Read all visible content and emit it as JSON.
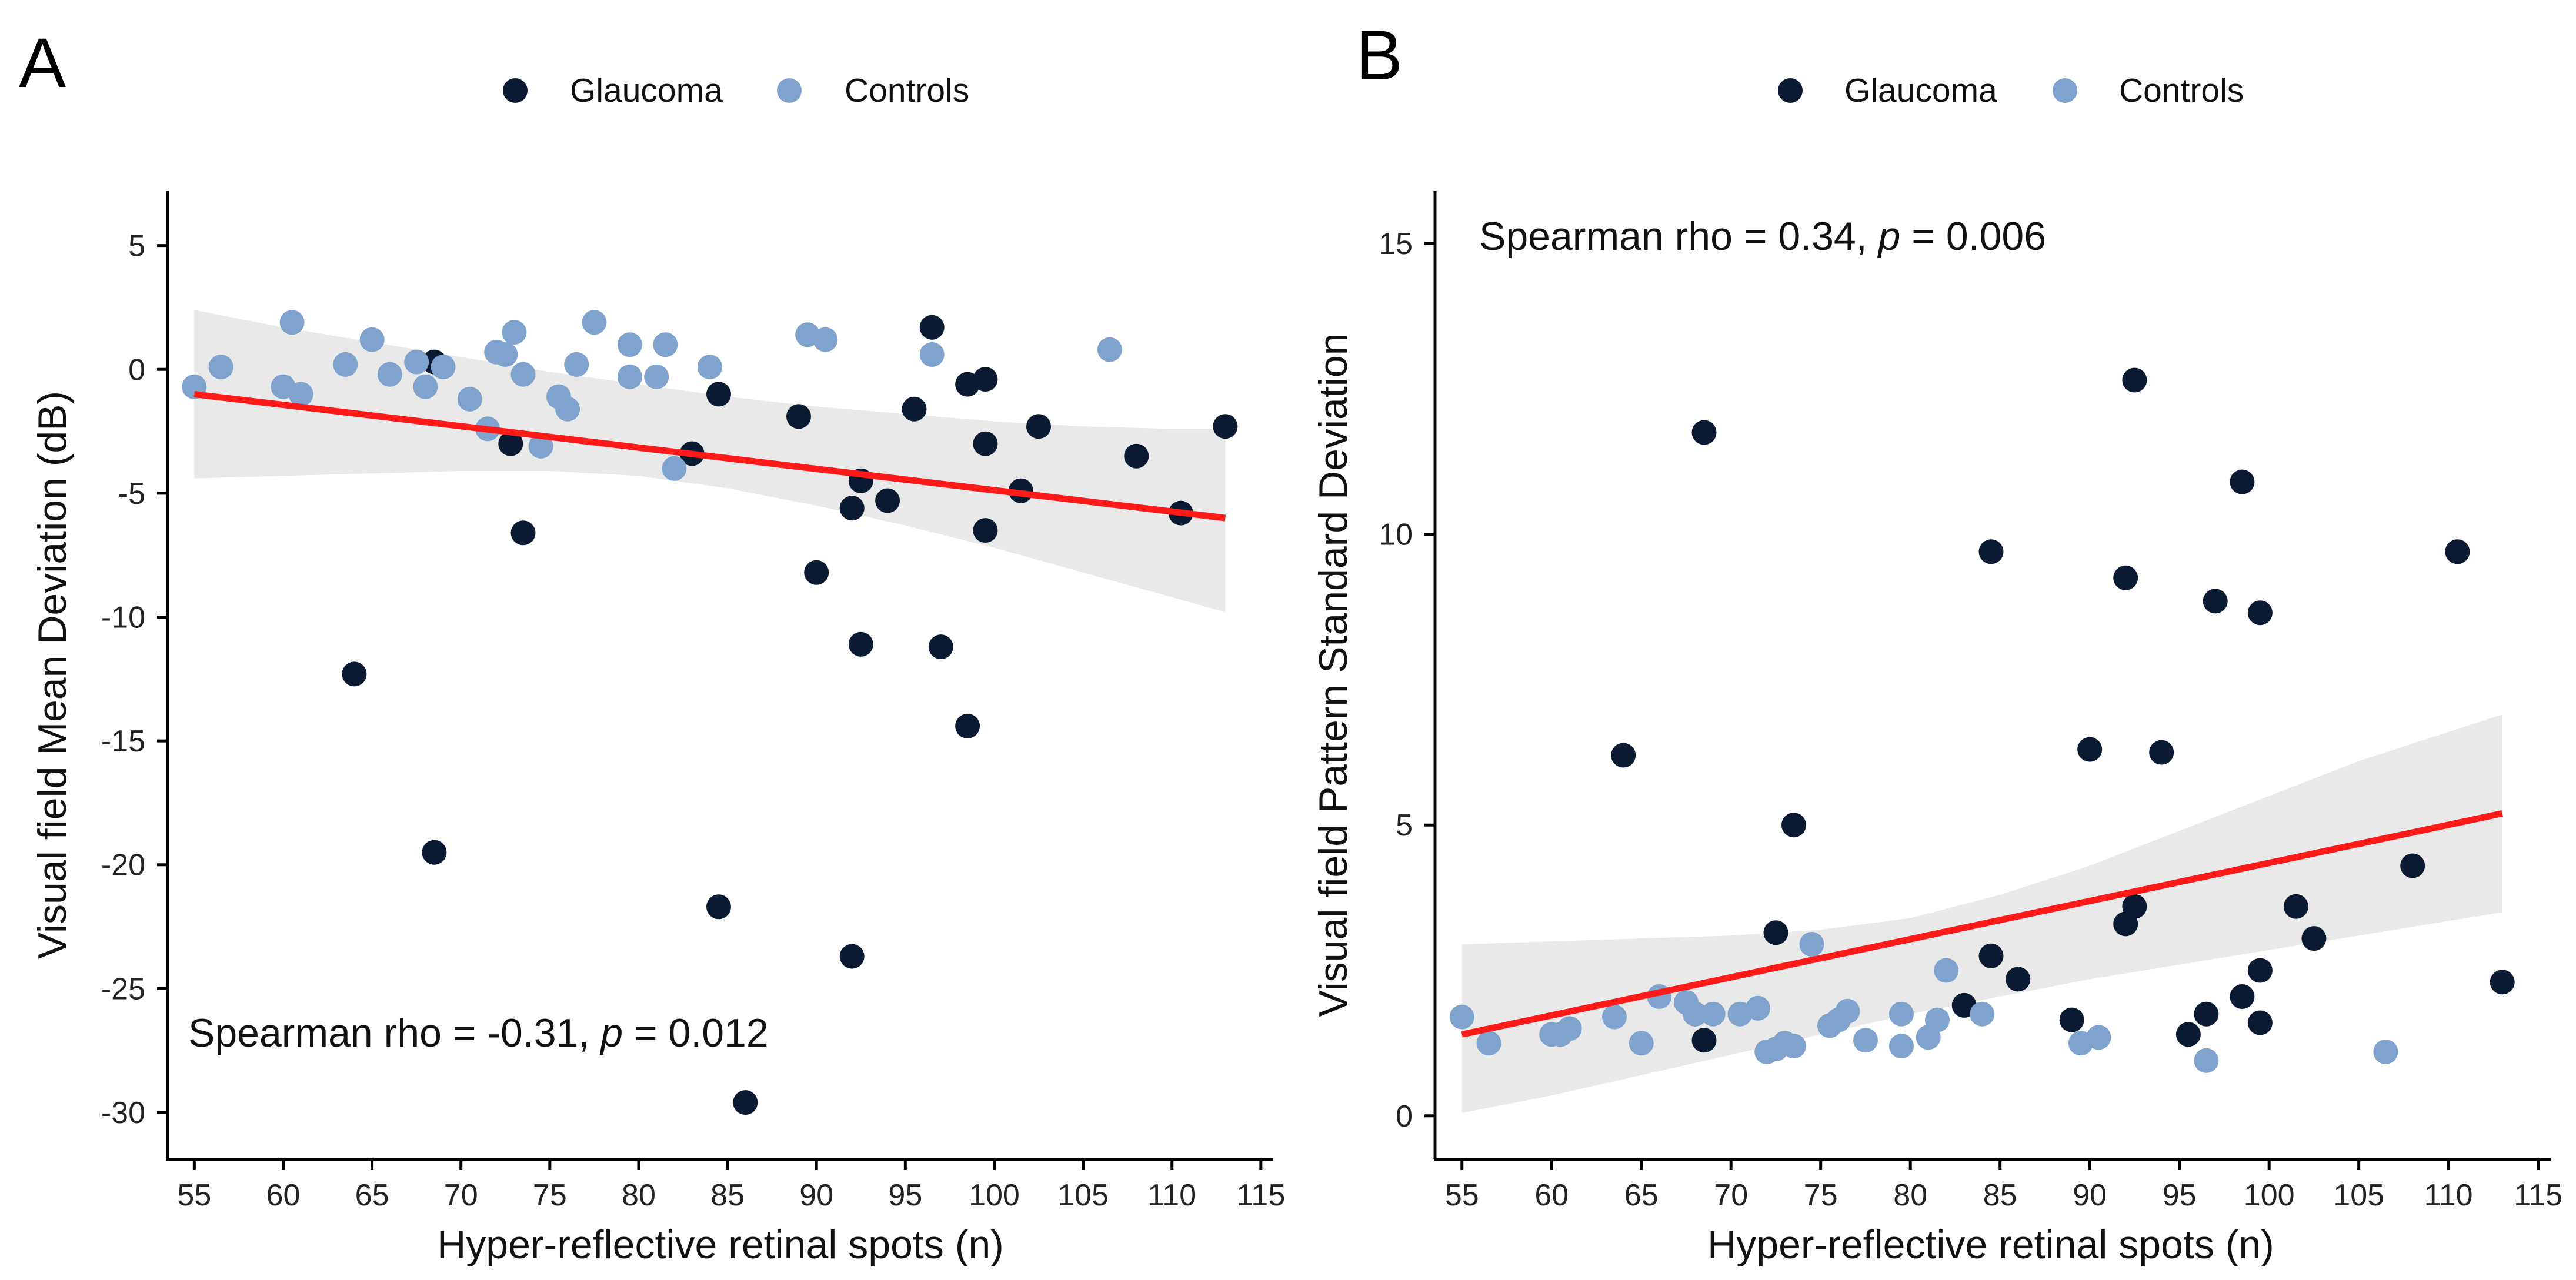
{
  "colors": {
    "glaucoma": "#0b1a33",
    "controls": "#7fa3cc",
    "trend": "#ff1a1a",
    "band": "#e5e5e5"
  },
  "chart_data": [
    {
      "type": "scatter",
      "panel": "A",
      "legend": [
        "Glaucoma",
        "Controls"
      ],
      "legend_position": "top-center",
      "xlabel": "Hyper-reflective retinal spots (n)",
      "ylabel": "Visual field Mean Deviation (dB)",
      "xlim": [
        53.5,
        115.7
      ],
      "ylim": [
        -31.9,
        7.2
      ],
      "xticks": [
        55,
        60,
        65,
        70,
        75,
        80,
        85,
        90,
        95,
        100,
        105,
        110,
        115
      ],
      "yticks": [
        5,
        0,
        -5,
        -10,
        -15,
        -20,
        -25,
        -30
      ],
      "xtick_labels": [
        "55",
        "60",
        "65",
        "70",
        "75",
        "80",
        "85",
        "90",
        "95",
        "100",
        "105",
        "110",
        "115"
      ],
      "ytick_labels": [
        "5",
        "0",
        "-5",
        "-10",
        "-15",
        "-20",
        "-25",
        "-30"
      ],
      "annotation": {
        "prefix": "Spearman rho = -0.31, ",
        "p": "p",
        "suffix": " = 0.012"
      },
      "trend": {
        "x": [
          55,
          113
        ],
        "y": [
          -1.0,
          -6.0
        ]
      },
      "band": {
        "x": [
          55,
          60,
          65,
          70,
          75,
          80,
          85,
          90,
          95,
          100,
          105,
          110,
          113
        ],
        "upper": [
          2.4,
          1.7,
          1.1,
          0.5,
          -0.1,
          -0.6,
          -1.1,
          -1.5,
          -1.8,
          -2.1,
          -2.3,
          -2.4,
          -2.4
        ],
        "lower": [
          -4.4,
          -4.3,
          -4.2,
          -4.1,
          -4.1,
          -4.3,
          -4.8,
          -5.5,
          -6.3,
          -7.2,
          -8.2,
          -9.2,
          -9.8
        ]
      },
      "series": [
        {
          "name": "Glaucoma",
          "x": [
            64.0,
            68.5,
            68.5,
            72.8,
            73.5,
            83,
            84.5,
            84.5,
            86,
            89,
            90,
            92,
            92,
            92.5,
            92.5,
            94,
            95.5,
            96.5,
            97,
            98.5,
            98.5,
            99.5,
            99.5,
            99.5,
            101.5,
            102.5,
            108,
            110.5,
            113
          ],
          "y": [
            -12.3,
            0.3,
            -19.5,
            -3.0,
            -6.6,
            -3.4,
            -1.0,
            -21.7,
            -29.6,
            -1.9,
            -8.2,
            -5.6,
            -23.7,
            -4.5,
            -11.1,
            -5.3,
            -1.6,
            1.7,
            -11.2,
            -0.6,
            -14.4,
            -0.4,
            -3.0,
            -6.5,
            -4.9,
            -2.3,
            -3.5,
            -5.8,
            -2.3
          ]
        },
        {
          "name": "Controls",
          "x": [
            55,
            56.5,
            60,
            60.5,
            61,
            63.5,
            65,
            66,
            67.5,
            68,
            69,
            70.5,
            71.5,
            72,
            72.5,
            73,
            73.5,
            74.5,
            75.5,
            76,
            76.5,
            77.5,
            79.5,
            79.5,
            81,
            81.5,
            82,
            84,
            89.5,
            90.5,
            96.5,
            106.5
          ],
          "y": [
            -0.7,
            0.1,
            -0.7,
            1.9,
            -1.0,
            0.2,
            1.2,
            -0.2,
            0.3,
            -0.7,
            0.1,
            -1.2,
            -2.4,
            0.7,
            0.6,
            1.5,
            -0.2,
            -3.1,
            -1.1,
            -1.6,
            0.2,
            1.9,
            -0.3,
            1.0,
            -0.3,
            1.0,
            -4.0,
            0.1,
            1.4,
            1.2,
            0.6,
            0.8
          ]
        }
      ]
    },
    {
      "type": "scatter",
      "panel": "B",
      "legend": [
        "Glaucoma",
        "Controls"
      ],
      "legend_position": "top-center",
      "xlabel": "Hyper-reflective retinal spots (n)",
      "ylabel": "Visual field Pattern Standard Deviation",
      "xlim": [
        53.5,
        115.7
      ],
      "ylim": [
        -0.75,
        15.9
      ],
      "xticks": [
        55,
        60,
        65,
        70,
        75,
        80,
        85,
        90,
        95,
        100,
        105,
        110,
        115
      ],
      "yticks": [
        0,
        5,
        10,
        15
      ],
      "xtick_labels": [
        "55",
        "60",
        "65",
        "70",
        "75",
        "80",
        "85",
        "90",
        "95",
        "100",
        "105",
        "110",
        "115"
      ],
      "ytick_labels": [
        "0",
        "5",
        "10",
        "15"
      ],
      "annotation": {
        "prefix": "Spearman rho = 0.34, ",
        "p": "p",
        "suffix": " = 0.006"
      },
      "trend": {
        "x": [
          55,
          113
        ],
        "y": [
          1.4,
          5.2
        ]
      },
      "band": {
        "x": [
          55,
          60,
          65,
          70,
          75,
          80,
          85,
          90,
          95,
          100,
          105,
          110,
          113
        ],
        "upper": [
          2.95,
          3.0,
          3.05,
          3.1,
          3.2,
          3.4,
          3.8,
          4.3,
          4.9,
          5.5,
          6.1,
          6.6,
          6.9
        ],
        "lower": [
          0.05,
          0.35,
          0.7,
          1.05,
          1.4,
          1.75,
          2.05,
          2.35,
          2.6,
          2.85,
          3.1,
          3.35,
          3.5
        ]
      },
      "series": [
        {
          "name": "Glaucoma",
          "x": [
            64,
            68,
            68.5,
            68.5,
            72.5,
            73.5,
            83,
            84.5,
            84.5,
            86,
            89,
            90,
            92,
            92,
            92.5,
            92.5,
            94,
            95.5,
            96.5,
            97,
            98.5,
            98.5,
            99.5,
            99.5,
            99.5,
            101.5,
            102.5,
            108,
            110.5,
            113
          ],
          "y": [
            6.2,
            1.75,
            11.75,
            1.3,
            3.15,
            5.0,
            1.9,
            9.7,
            2.75,
            2.35,
            1.65,
            6.3,
            9.25,
            3.3,
            12.65,
            3.6,
            6.25,
            1.4,
            1.75,
            8.85,
            10.9,
            2.05,
            8.65,
            2.5,
            1.6,
            3.6,
            3.05,
            4.3,
            9.7,
            2.3
          ]
        },
        {
          "name": "Controls",
          "x": [
            55,
            56.5,
            60,
            60.5,
            61,
            63.5,
            65,
            66,
            67.5,
            68,
            69,
            70.5,
            71.5,
            72,
            72.5,
            73,
            73.5,
            74.5,
            75.5,
            76,
            76.5,
            77.5,
            79.5,
            79.5,
            81,
            81.5,
            82,
            84,
            89.5,
            90.5,
            96.5,
            106.5
          ],
          "y": [
            1.7,
            1.25,
            1.4,
            1.4,
            1.5,
            1.7,
            1.25,
            2.05,
            1.95,
            1.75,
            1.75,
            1.75,
            1.85,
            1.1,
            1.15,
            1.25,
            1.2,
            2.95,
            1.55,
            1.65,
            1.8,
            1.3,
            1.2,
            1.75,
            1.35,
            1.65,
            2.5,
            1.75,
            1.25,
            1.35,
            0.95,
            1.1
          ]
        }
      ]
    }
  ]
}
